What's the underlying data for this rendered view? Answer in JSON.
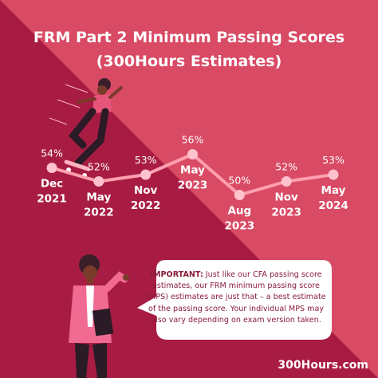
{
  "colors": {
    "background_dark": "#a81c44",
    "background_light": "#d94a64",
    "line": "#ff9fb0",
    "marker": "#ffc2cc",
    "text": "#ffffff",
    "bubble_text": "#8a1d3a"
  },
  "note": {
    "strong": "IMPORTANT:",
    "text": "Just like our CFA passing score estimates, our FRM minimum passing score (MPS) estimates are just that – a best estimate of the passing score. Your individual MPS may also vary depending on exam version taken."
  },
  "brand": "300Hours.com",
  "chart_data": {
    "type": "line",
    "title": "FRM Part 2 Minimum Passing Scores",
    "subtitle": "(300Hours Estimates)",
    "xlabel": "",
    "ylabel": "",
    "grid": false,
    "legend": "none",
    "categories": [
      {
        "line1": "Dec",
        "line2": "2021"
      },
      {
        "line1": "May",
        "line2": "2022"
      },
      {
        "line1": "Nov",
        "line2": "2022"
      },
      {
        "line1": "May",
        "line2": "2023"
      },
      {
        "line1": "Aug",
        "line2": "2023"
      },
      {
        "line1": "Nov",
        "line2": "2023"
      },
      {
        "line1": "May",
        "line2": "2024"
      }
    ],
    "values": [
      54,
      52,
      53,
      56,
      50,
      52,
      53
    ],
    "value_labels": [
      "54%",
      "52%",
      "53%",
      "56%",
      "50%",
      "52%",
      "53%"
    ],
    "ylim": [
      49,
      57
    ]
  }
}
